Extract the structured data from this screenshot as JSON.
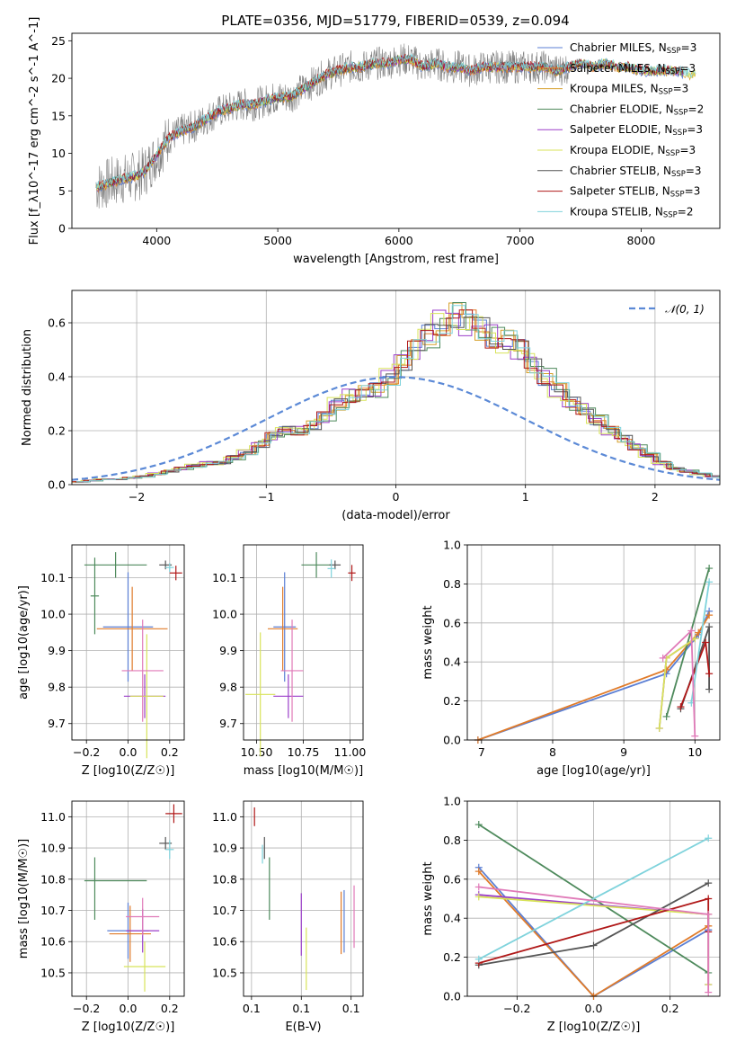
{
  "title": "PLATE=0356, MJD=51779, FIBERID=0539, z=0.094",
  "colors": {
    "chabrier_miles": "#5b7fd4",
    "salpeter_miles": "#e07b2a",
    "kroupa_miles": "#d6a12b",
    "chabrier_elodie": "#4e8a5c",
    "salpeter_elodie": "#9b3fc9",
    "kroupa_elodie": "#d8e35a",
    "chabrier_stelib": "#555555",
    "salpeter_stelib": "#b01818",
    "kroupa_stelib": "#7fd3dc",
    "pink": "#e07ab8",
    "gauss": "#5b89d6"
  },
  "chart_data": [
    {
      "id": "spectrum",
      "type": "line",
      "title": "PLATE=0356, MJD=51779, FIBERID=0539, z=0.094",
      "xlabel": "wavelength [Angstrom, rest frame]",
      "ylabel": "Flux [f_λ10^-17 erg cm^-2 s^-1 A^-1]",
      "xlim": [
        3300,
        8650
      ],
      "ylim": [
        0,
        26
      ],
      "xticks": [
        4000,
        5000,
        6000,
        7000,
        8000
      ],
      "yticks": [
        0,
        5,
        10,
        15,
        20,
        25
      ],
      "legend_position": "upper right",
      "legend": [
        {
          "label": "Chabrier MILES, N_SSP=3",
          "color": "#5b7fd4"
        },
        {
          "label": "Salpeter MILES, N_SSP=3",
          "color": "#e07b2a"
        },
        {
          "label": "Kroupa MILES, N_SSP=3",
          "color": "#d6a12b"
        },
        {
          "label": "Chabrier ELODIE, N_SSP=2",
          "color": "#4e8a5c"
        },
        {
          "label": "Salpeter ELODIE, N_SSP=3",
          "color": "#9b3fc9"
        },
        {
          "label": "Kroupa ELODIE, N_SSP=3",
          "color": "#d8e35a"
        },
        {
          "label": "Chabrier STELIB, N_SSP=3",
          "color": "#555555"
        },
        {
          "label": "Salpeter STELIB, N_SSP=3",
          "color": "#b01818"
        },
        {
          "label": "Kroupa STELIB, N_SSP=2",
          "color": "#7fd3dc"
        }
      ],
      "model_curve": {
        "x": [
          3500,
          3600,
          3700,
          3800,
          3900,
          4000,
          4100,
          4200,
          4300,
          4400,
          4500,
          4600,
          4700,
          4800,
          4900,
          5000,
          5100,
          5200,
          5300,
          5400,
          5500,
          5600,
          5700,
          5800,
          5900,
          6000,
          6100,
          6200,
          6300,
          6400,
          6500,
          6600,
          6700,
          6800,
          6900,
          7000,
          7100,
          7200,
          7300,
          7400,
          7500,
          7600,
          7700,
          7800,
          7900,
          8000,
          8100,
          8200,
          8300,
          8400
        ],
        "y": [
          5.5,
          6.0,
          6.5,
          6.8,
          7.5,
          9.8,
          12.0,
          13.0,
          13.5,
          14.5,
          15.5,
          16.0,
          16.5,
          16.5,
          17.0,
          17.5,
          17.5,
          18.5,
          19.5,
          20.5,
          21.0,
          21.5,
          21.5,
          22.0,
          22.0,
          22.5,
          22.5,
          21.5,
          22.0,
          21.5,
          21.5,
          21.0,
          21.5,
          21.5,
          21.5,
          21.5,
          21.5,
          21.5,
          21.0,
          21.5,
          22.0,
          21.5,
          22.0,
          21.5,
          21.5,
          21.0,
          21.0,
          21.0,
          21.0,
          20.5
        ]
      },
      "data_range": [
        3500,
        7400
      ],
      "noise_note": "grey observed spectrum fluctuating around the models"
    },
    {
      "id": "residuals",
      "type": "histogram",
      "xlabel": "(data-model)/error",
      "ylabel": "Normed distribution",
      "xlim": [
        -2.5,
        2.5
      ],
      "ylim": [
        0,
        0.72
      ],
      "xticks": [
        -2,
        -1,
        0,
        1,
        2
      ],
      "yticks": [
        0.0,
        0.2,
        0.4,
        0.6
      ],
      "grid": true,
      "legend": [
        {
          "label": "𝒩(0, 1)",
          "style": "dashed"
        }
      ],
      "legend_position": "upper right",
      "bin_edges_start": -2.5,
      "bin_width": 0.1,
      "reference_hist": [
        0.01,
        0.015,
        0.02,
        0.02,
        0.025,
        0.03,
        0.04,
        0.05,
        0.06,
        0.07,
        0.08,
        0.08,
        0.1,
        0.12,
        0.15,
        0.18,
        0.2,
        0.2,
        0.22,
        0.25,
        0.3,
        0.33,
        0.34,
        0.35,
        0.4,
        0.46,
        0.5,
        0.55,
        0.6,
        0.63,
        0.6,
        0.58,
        0.55,
        0.53,
        0.5,
        0.45,
        0.4,
        0.35,
        0.3,
        0.28,
        0.24,
        0.2,
        0.17,
        0.14,
        0.11,
        0.08,
        0.06,
        0.05,
        0.04,
        0.03
      ]
    },
    {
      "id": "age_vs_Z",
      "type": "scatter",
      "xlabel": "Z [log10(Z/Z☉)]",
      "ylabel": "age  [log10(age/yr)]",
      "xlim": [
        -0.27,
        0.27
      ],
      "ylim": [
        9.655,
        10.19
      ],
      "xticks": [
        -0.2,
        0.0,
        0.2
      ],
      "yticks": [
        9.7,
        9.8,
        9.9,
        10.0,
        10.1
      ],
      "grid": true,
      "points": [
        {
          "x": -0.06,
          "y": 10.135,
          "ex": 0.15,
          "ey": 0.035,
          "color": "#4e8a5c"
        },
        {
          "x": -0.16,
          "y": 10.05,
          "ex": 0.02,
          "ey": 0.105,
          "color": "#4e8a5c"
        },
        {
          "x": 0.0,
          "y": 9.965,
          "ex": 0.12,
          "ey": 0.15,
          "color": "#5b7fd4"
        },
        {
          "x": 0.02,
          "y": 9.96,
          "ex": 0.17,
          "ey": 0.115,
          "color": "#e07b2a"
        },
        {
          "x": 0.08,
          "y": 9.775,
          "ex": 0.1,
          "ey": 0.06,
          "color": "#9b3fc9"
        },
        {
          "x": 0.09,
          "y": 9.775,
          "ex": 0.08,
          "ey": 0.17,
          "color": "#d8e35a"
        },
        {
          "x": 0.07,
          "y": 9.845,
          "ex": 0.1,
          "ey": 0.14,
          "color": "#e07ab8"
        },
        {
          "x": 0.18,
          "y": 10.135,
          "ex": 0.03,
          "ey": 0.012,
          "color": "#555555"
        },
        {
          "x": 0.2,
          "y": 10.128,
          "ex": 0.02,
          "ey": 0.012,
          "color": "#7fd3dc"
        },
        {
          "x": 0.23,
          "y": 10.113,
          "ex": 0.03,
          "ey": 0.02,
          "color": "#b01818"
        }
      ]
    },
    {
      "id": "age_vs_mass",
      "type": "scatter",
      "xlabel": "mass [log10(M/M☉)]",
      "ylabel": "",
      "xlim": [
        10.43,
        11.07
      ],
      "ylim": [
        9.655,
        10.19
      ],
      "xticks": [
        10.5,
        10.75,
        11.0
      ],
      "yticks": [
        9.7,
        9.8,
        9.9,
        10.0,
        10.1
      ],
      "grid": true,
      "points": [
        {
          "x": 10.82,
          "y": 10.135,
          "ex": 0.08,
          "ey": 0.035,
          "color": "#4e8a5c"
        },
        {
          "x": 10.65,
          "y": 9.965,
          "ex": 0.06,
          "ey": 0.15,
          "color": "#5b7fd4"
        },
        {
          "x": 10.64,
          "y": 9.96,
          "ex": 0.08,
          "ey": 0.115,
          "color": "#e07b2a"
        },
        {
          "x": 10.67,
          "y": 9.775,
          "ex": 0.08,
          "ey": 0.06,
          "color": "#9b3fc9"
        },
        {
          "x": 10.52,
          "y": 9.78,
          "ex": 0.08,
          "ey": 0.17,
          "color": "#d8e35a"
        },
        {
          "x": 10.69,
          "y": 9.845,
          "ex": 0.06,
          "ey": 0.14,
          "color": "#e07ab8"
        },
        {
          "x": 10.92,
          "y": 10.135,
          "ex": 0.03,
          "ey": 0.012,
          "color": "#555555"
        },
        {
          "x": 10.9,
          "y": 10.125,
          "ex": 0.02,
          "ey": 0.025,
          "color": "#7fd3dc"
        },
        {
          "x": 11.01,
          "y": 10.113,
          "ex": 0.02,
          "ey": 0.022,
          "color": "#b01818"
        }
      ]
    },
    {
      "id": "massweight_vs_age",
      "type": "line",
      "xlabel": "age  [log10(age/yr)]",
      "ylabel": "mass weight",
      "xlim": [
        6.8,
        10.35
      ],
      "ylim": [
        0,
        1.0
      ],
      "xticks": [
        7,
        8,
        9,
        10
      ],
      "yticks": [
        0.0,
        0.2,
        0.4,
        0.6,
        0.8,
        1.0
      ],
      "grid": true,
      "series": [
        {
          "color": "#5b7fd4",
          "x": [
            6.95,
            9.6,
            10.05,
            10.2
          ],
          "y": [
            0.0,
            0.34,
            0.54,
            0.66
          ]
        },
        {
          "color": "#e07b2a",
          "x": [
            6.95,
            9.6,
            10.05,
            10.2
          ],
          "y": [
            0.0,
            0.36,
            0.55,
            0.64
          ]
        },
        {
          "color": "#4e8a5c",
          "x": [
            9.6,
            10.2
          ],
          "y": [
            0.12,
            0.88
          ]
        },
        {
          "color": "#9b3fc9",
          "x": [
            9.5,
            9.6,
            10.0
          ],
          "y": [
            0.06,
            0.42,
            0.52
          ]
        },
        {
          "color": "#d8e35a",
          "x": [
            9.5,
            9.6,
            10.0
          ],
          "y": [
            0.06,
            0.42,
            0.52
          ]
        },
        {
          "color": "#555555",
          "x": [
            9.8,
            10.2,
            10.2
          ],
          "y": [
            0.16,
            0.58,
            0.26
          ]
        },
        {
          "color": "#b01818",
          "x": [
            9.8,
            10.15,
            10.2
          ],
          "y": [
            0.17,
            0.5,
            0.34
          ]
        },
        {
          "color": "#7fd3dc",
          "x": [
            9.95,
            10.2
          ],
          "y": [
            0.19,
            0.81
          ]
        },
        {
          "color": "#e07ab8",
          "x": [
            9.55,
            9.95,
            10.0
          ],
          "y": [
            0.42,
            0.56,
            0.02
          ]
        }
      ]
    },
    {
      "id": "mass_vs_Z",
      "type": "scatter",
      "xlabel": "Z [log10(Z/Z☉)]",
      "ylabel": "mass [log10(M/M☉)]",
      "xlim": [
        -0.27,
        0.27
      ],
      "ylim": [
        10.425,
        11.05
      ],
      "xticks": [
        -0.2,
        0.0,
        0.2
      ],
      "yticks": [
        10.5,
        10.6,
        10.7,
        10.8,
        10.9,
        11.0
      ],
      "grid": true,
      "points": [
        {
          "x": -0.06,
          "y": 10.795,
          "ex": 0.15,
          "ey": 0.0,
          "color": "#4e8a5c"
        },
        {
          "x": -0.16,
          "y": 10.77,
          "ex": 0.0,
          "ey": 0.1,
          "color": "#4e8a5c"
        },
        {
          "x": 0.0,
          "y": 10.635,
          "ex": 0.1,
          "ey": 0.09,
          "color": "#5b7fd4"
        },
        {
          "x": 0.01,
          "y": 10.625,
          "ex": 0.1,
          "ey": 0.09,
          "color": "#e07b2a"
        },
        {
          "x": 0.07,
          "y": 10.635,
          "ex": 0.08,
          "ey": 0.07,
          "color": "#9b3fc9"
        },
        {
          "x": 0.08,
          "y": 10.52,
          "ex": 0.1,
          "ey": 0.08,
          "color": "#d8e35a"
        },
        {
          "x": 0.07,
          "y": 10.68,
          "ex": 0.08,
          "ey": 0.06,
          "color": "#e07ab8"
        },
        {
          "x": 0.18,
          "y": 10.915,
          "ex": 0.03,
          "ey": 0.02,
          "color": "#555555"
        },
        {
          "x": 0.2,
          "y": 10.895,
          "ex": 0.02,
          "ey": 0.03,
          "color": "#7fd3dc"
        },
        {
          "x": 0.22,
          "y": 11.01,
          "ex": 0.04,
          "ey": 0.03,
          "color": "#b01818"
        }
      ]
    },
    {
      "id": "mass_vs_ebv",
      "type": "scatter",
      "xlabel": "E(B-V)",
      "ylabel": "",
      "xlim": [
        0.042,
        0.162
      ],
      "ylim": [
        10.425,
        11.05
      ],
      "xticks": [
        0.05,
        0.1,
        0.15
      ],
      "yticks": [
        10.5,
        10.6,
        10.7,
        10.8,
        10.9,
        11.0
      ],
      "grid": true,
      "points": [
        {
          "x": 0.053,
          "y": 11.0,
          "ex": 0.0,
          "ey": 0.03,
          "color": "#b01818"
        },
        {
          "x": 0.061,
          "y": 10.88,
          "ex": 0.0,
          "ey": 0.03,
          "color": "#7fd3dc"
        },
        {
          "x": 0.063,
          "y": 10.9,
          "ex": 0.0,
          "ey": 0.035,
          "color": "#555555"
        },
        {
          "x": 0.068,
          "y": 10.77,
          "ex": 0.0,
          "ey": 0.1,
          "color": "#4e8a5c"
        },
        {
          "x": 0.1,
          "y": 10.655,
          "ex": 0.0,
          "ey": 0.1,
          "color": "#9b3fc9"
        },
        {
          "x": 0.105,
          "y": 10.545,
          "ex": 0.0,
          "ey": 0.1,
          "color": "#d8e35a"
        },
        {
          "x": 0.14,
          "y": 10.66,
          "ex": 0.0,
          "ey": 0.1,
          "color": "#e07b2a"
        },
        {
          "x": 0.143,
          "y": 10.665,
          "ex": 0.0,
          "ey": 0.1,
          "color": "#5b7fd4"
        },
        {
          "x": 0.153,
          "y": 10.68,
          "ex": 0.0,
          "ey": 0.1,
          "color": "#e07ab8"
        }
      ]
    },
    {
      "id": "massweight_vs_Z",
      "type": "line",
      "xlabel": "Z [log10(Z/Z☉)]",
      "ylabel": "mass weight",
      "xlim": [
        -0.33,
        0.33
      ],
      "ylim": [
        0,
        1.0
      ],
      "xticks": [
        -0.2,
        0.0,
        0.2
      ],
      "yticks": [
        0.0,
        0.2,
        0.4,
        0.6,
        0.8,
        1.0
      ],
      "grid": true,
      "series": [
        {
          "color": "#5b7fd4",
          "x": [
            -0.3,
            0.0,
            0.3,
            0.3
          ],
          "y": [
            0.66,
            0.0,
            0.34,
            0.34
          ]
        },
        {
          "color": "#e07b2a",
          "x": [
            -0.3,
            0.0,
            0.3,
            0.3
          ],
          "y": [
            0.64,
            0.0,
            0.36,
            0.36
          ]
        },
        {
          "color": "#4e8a5c",
          "x": [
            -0.3,
            0.3
          ],
          "y": [
            0.88,
            0.12
          ]
        },
        {
          "color": "#9b3fc9",
          "x": [
            -0.3,
            0.3,
            0.3
          ],
          "y": [
            0.52,
            0.42,
            0.06
          ]
        },
        {
          "color": "#d8e35a",
          "x": [
            -0.3,
            0.3,
            0.3
          ],
          "y": [
            0.51,
            0.42,
            0.06
          ]
        },
        {
          "color": "#555555",
          "x": [
            -0.3,
            0.0,
            0.3
          ],
          "y": [
            0.16,
            0.26,
            0.58
          ]
        },
        {
          "color": "#b01818",
          "x": [
            -0.3,
            0.3,
            0.3
          ],
          "y": [
            0.17,
            0.5,
            0.33
          ]
        },
        {
          "color": "#7fd3dc",
          "x": [
            -0.3,
            0.3
          ],
          "y": [
            0.19,
            0.81
          ]
        },
        {
          "color": "#e07ab8",
          "x": [
            -0.3,
            0.3,
            0.3
          ],
          "y": [
            0.56,
            0.42,
            0.02
          ]
        }
      ]
    }
  ]
}
